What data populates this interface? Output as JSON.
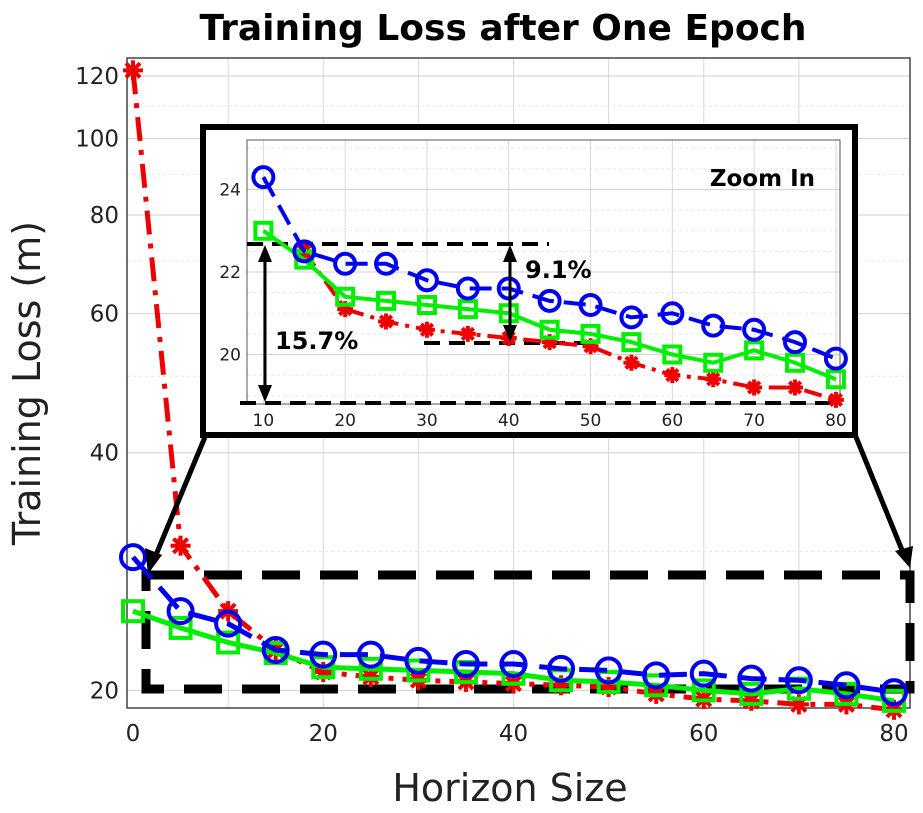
{
  "chart_data": {
    "type": "line",
    "title": "Training Loss after One Epoch",
    "xlabel": "Horizon Size",
    "ylabel": "Training Loss (m)",
    "yscale": "log",
    "xlim": [
      0,
      80
    ],
    "ylim": [
      19,
      125
    ],
    "xticks": [
      "0",
      "20",
      "40",
      "60",
      "80"
    ],
    "yticks": [
      "20",
      "40",
      "60",
      "80",
      "100",
      "120"
    ],
    "grid": true,
    "series": [
      {
        "name": "blue-circles",
        "color": "#0000ee",
        "marker": "circle",
        "linestyle": "dashed",
        "x": [
          0,
          5,
          10,
          15,
          20,
          25,
          30,
          35,
          40,
          45,
          50,
          55,
          60,
          65,
          70,
          75,
          80
        ],
        "y": [
          29.5,
          25.2,
          24.3,
          22.5,
          22.2,
          22.2,
          21.8,
          21.6,
          21.6,
          21.3,
          21.2,
          20.9,
          21.0,
          20.7,
          20.6,
          20.3,
          19.9
        ]
      },
      {
        "name": "red-stars",
        "color": "#ee0000",
        "marker": "star",
        "linestyle": "dashdot",
        "x": [
          0,
          5,
          10,
          15,
          20,
          25,
          30,
          35,
          40,
          45,
          50,
          55,
          60,
          65,
          70,
          75,
          80
        ],
        "y": [
          122,
          30.5,
          25.2,
          22.5,
          21.1,
          20.8,
          20.6,
          20.5,
          20.4,
          20.3,
          20.2,
          19.8,
          19.5,
          19.4,
          19.2,
          19.2,
          18.9
        ]
      },
      {
        "name": "green-squares",
        "color": "#00ee00",
        "marker": "square",
        "linestyle": "solid",
        "x": [
          0,
          5,
          10,
          15,
          20,
          25,
          30,
          35,
          40,
          45,
          50,
          55,
          60,
          65,
          70,
          75,
          80
        ],
        "y": [
          25.2,
          24.0,
          23.0,
          22.3,
          21.4,
          21.3,
          21.2,
          21.1,
          21.0,
          20.6,
          20.5,
          20.3,
          20.0,
          19.8,
          20.1,
          19.8,
          19.4
        ]
      }
    ],
    "inset": {
      "label": "Zoom In",
      "xlim": [
        8,
        80.5
      ],
      "ylim": [
        18.8,
        25.2
      ],
      "xticks": [
        "10",
        "20",
        "30",
        "40",
        "50",
        "60",
        "70",
        "80"
      ],
      "yticks": [
        "20",
        "22",
        "24"
      ],
      "annotations": [
        "9.1%",
        "15.7%"
      ]
    }
  }
}
